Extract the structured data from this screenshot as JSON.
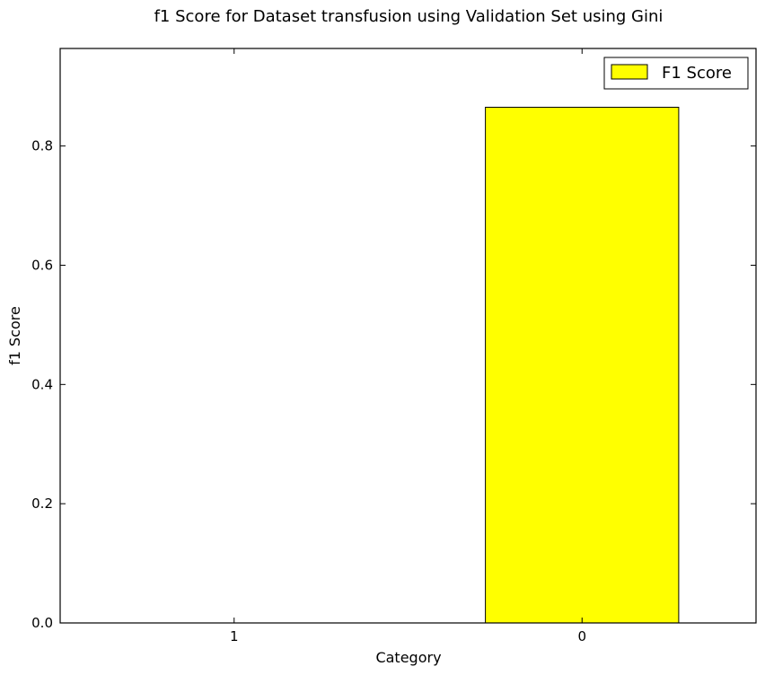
{
  "chart_data": {
    "type": "bar",
    "title": "f1 Score for Dataset transfusion using Validation Set using Gini",
    "xlabel": "Category",
    "ylabel": "f1 Score",
    "categories": [
      "1",
      "0"
    ],
    "series": [
      {
        "name": "F1 Score",
        "values": [
          0.0,
          0.865
        ],
        "color": "#ffff00"
      }
    ],
    "ylim": [
      0.0,
      0.9636
    ],
    "yticks": [
      "0.0",
      "0.2",
      "0.4",
      "0.6",
      "0.8"
    ],
    "ytick_values": [
      0.0,
      0.2,
      0.4,
      0.6,
      0.8
    ],
    "grid": false,
    "legend_position": "top-right"
  }
}
